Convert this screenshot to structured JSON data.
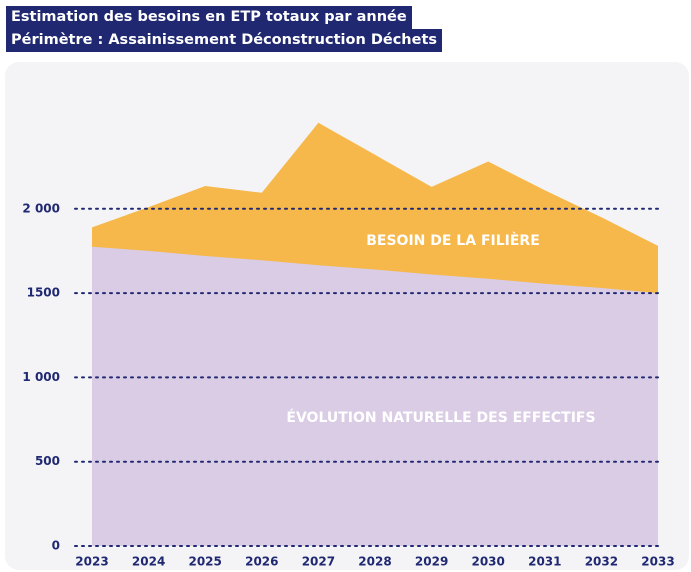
{
  "chart_data": {
    "type": "area",
    "title": "Estimation des besoins en ETP totaux par année",
    "subtitle": "Périmètre : Assainissement Déconstruction Déchets",
    "categories": [
      "2023",
      "2024",
      "2025",
      "2026",
      "2027",
      "2028",
      "2029",
      "2030",
      "2031",
      "2032",
      "2033"
    ],
    "series": [
      {
        "name": "BESOIN DE LA FILIÈRE",
        "color": "#f6b84a",
        "values": [
          1890,
          2010,
          2135,
          2095,
          2510,
          2320,
          2130,
          2280,
          2110,
          1950,
          1780
        ]
      },
      {
        "name": "ÉVOLUTION NATURELLE DES EFFECTIFS",
        "color": "#d9cce4",
        "values": [
          1775,
          1750,
          1720,
          1695,
          1665,
          1640,
          1610,
          1585,
          1555,
          1530,
          1500
        ]
      }
    ],
    "ylim": [
      0,
      2600
    ],
    "yticks": [
      0,
      500,
      {
        "value": 1000,
        "label": "1 000"
      },
      1500,
      {
        "value": 2000,
        "label": "2 000"
      }
    ],
    "grid": true
  }
}
